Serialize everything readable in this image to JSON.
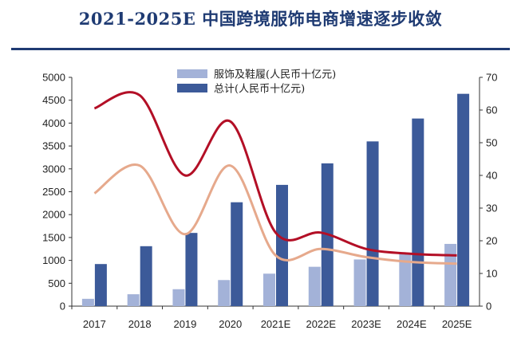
{
  "title": "2021-2025E 中国跨境服饰电商增速逐步收敛",
  "chart_data": {
    "type": "bar",
    "categories": [
      "2017",
      "2018",
      "2019",
      "2020",
      "2021E",
      "2022E",
      "2023E",
      "2024E",
      "2025E"
    ],
    "series": [
      {
        "name": "服饰及鞋履(人民币十亿元)",
        "type": "bar",
        "axis": "left",
        "color": "#a3b2d8",
        "values": [
          160,
          260,
          370,
          570,
          710,
          860,
          1020,
          1160,
          1360
        ]
      },
      {
        "name": "总计(人民币十亿元)",
        "type": "bar",
        "axis": "left",
        "color": "#3c5a99",
        "values": [
          920,
          1310,
          1600,
          2270,
          2650,
          3120,
          3600,
          4100,
          4640
        ]
      },
      {
        "type": "line",
        "axis": "right",
        "color": "#b30f26",
        "values": [
          60.5,
          64.5,
          40,
          56.5,
          22.5,
          22.5,
          17.5,
          16,
          15.5
        ]
      },
      {
        "type": "line",
        "axis": "right",
        "color": "#e6a98c",
        "values": [
          34.5,
          43,
          22,
          43,
          15.5,
          17.5,
          15,
          13.5,
          13
        ]
      }
    ],
    "ylim": [
      0,
      5000
    ],
    "y_ticks": [
      "0",
      "500",
      "1000",
      "1500",
      "2000",
      "2500",
      "3000",
      "3500",
      "4000",
      "4500",
      "5000"
    ],
    "y2lim": [
      0,
      70
    ],
    "y2_ticks": [
      "0",
      "10",
      "20",
      "30",
      "40",
      "50",
      "60",
      "70"
    ],
    "legend_position": "top-center",
    "grid": false
  }
}
